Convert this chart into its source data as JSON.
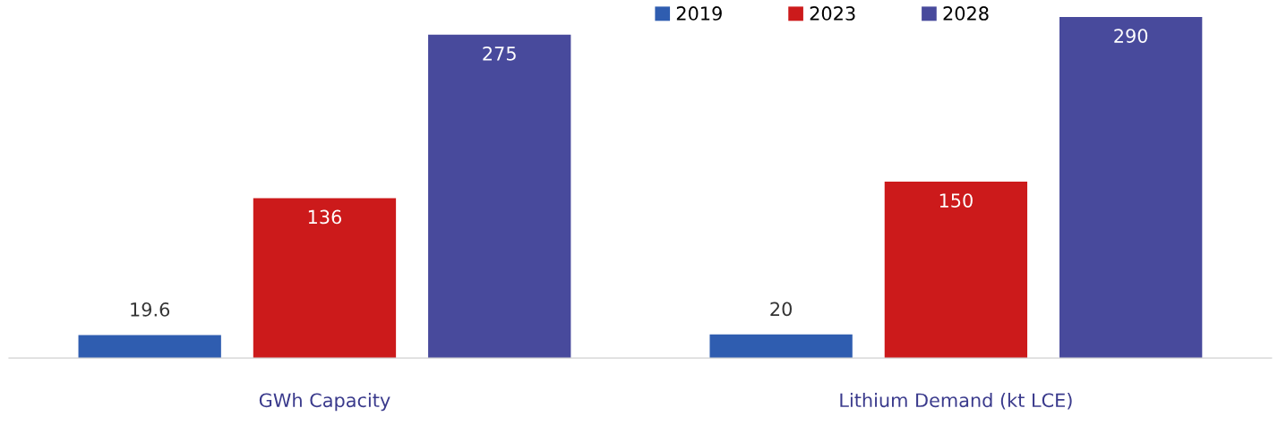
{
  "chart_data": {
    "type": "bar",
    "categories": [
      "GWh Capacity",
      "Lithium Demand (kt LCE)"
    ],
    "series": [
      {
        "name": "2019",
        "color": "#2f5db0",
        "values": [
          19.6,
          20
        ]
      },
      {
        "name": "2023",
        "color": "#cc1a1b",
        "values": [
          136,
          150
        ]
      },
      {
        "name": "2028",
        "color": "#484a9c",
        "values": [
          275,
          290
        ]
      }
    ],
    "data_labels": true,
    "legend": "top right",
    "grid": false
  }
}
